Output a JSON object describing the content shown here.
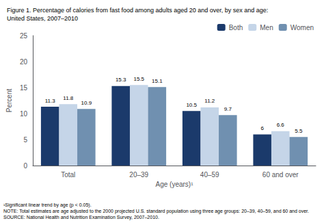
{
  "chart_data": {
    "type": "bar",
    "title": "Figure 1. Percentage of calories from fast food among adults aged 20 and over, by sex and age:\nUnited States, 2007–2010",
    "categories": [
      "Total",
      "20–39",
      "40–59",
      "60 and over"
    ],
    "series": [
      {
        "name": "Both",
        "color": "#1b3a6b",
        "values": [
          11.3,
          15.3,
          10.5,
          6.0
        ]
      },
      {
        "name": "Men",
        "color": "#c5d5e8",
        "values": [
          11.8,
          15.5,
          11.2,
          6.6
        ]
      },
      {
        "name": "Women",
        "color": "#7090b0",
        "values": [
          10.9,
          15.1,
          9.7,
          5.5
        ]
      }
    ],
    "xlabel": "Age (years)¹",
    "ylabel": "Percent",
    "ylim": [
      0,
      25
    ],
    "yticks": [
      0,
      5,
      10,
      15,
      20,
      25
    ],
    "grid": false,
    "legend": "upper right",
    "data_labels": true,
    "annotations": [
      "¹Significant linear trend by age (p < 0.05).",
      "NOTE: Total estimates are age adjusted to the 2000 projected U.S. standard population using three age groups: 20–39, 40–59, and 60 and over.",
      "SOURCE: National Health and Nutrition Examination Survey, 2007–2010."
    ]
  }
}
